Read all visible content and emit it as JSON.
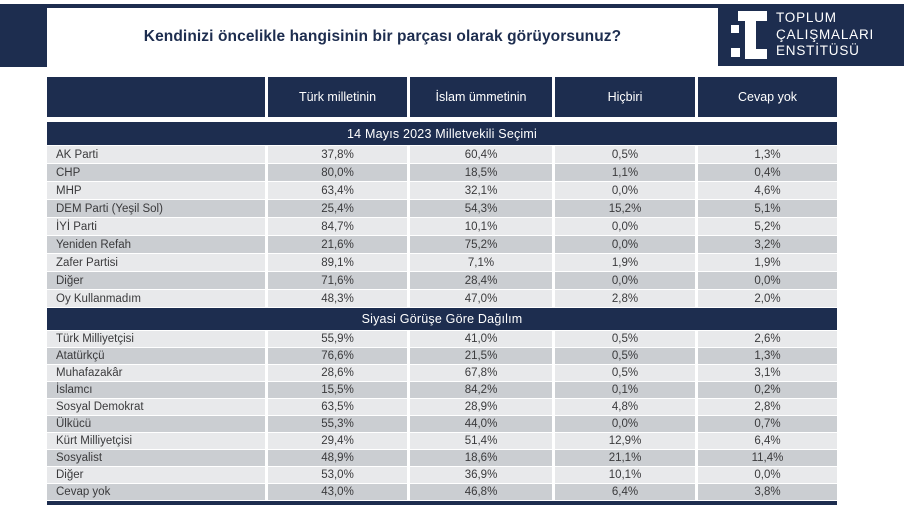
{
  "page": {
    "title": "Kendinizi öncelikle hangisinin bir parçası olarak görüyorsunuz?"
  },
  "logo": {
    "lines": [
      "TOPLUM",
      "ÇALIŞMALARI",
      "ENSTİTÜSÜ"
    ]
  },
  "colors": {
    "navy": "#1d2d4f",
    "row_light": "#e8e9eb",
    "row_dark": "#cbced2",
    "text_dark": "#3a3a3c"
  },
  "chart_data": {
    "type": "table",
    "title": "Kendinizi öncelikle hangisinin bir parçası olarak görüyorsunuz?",
    "columns": [
      "Türk milletinin",
      "İslam ümmetinin",
      "Hiçbiri",
      "Cevap yok"
    ],
    "sections": [
      {
        "title": "14 Mayıs 2023 Milletvekili Seçimi",
        "rows": [
          {
            "label": "AK Parti",
            "values": [
              "37,8%",
              "60,4%",
              "0,5%",
              "1,3%"
            ]
          },
          {
            "label": "CHP",
            "values": [
              "80,0%",
              "18,5%",
              "1,1%",
              "0,4%"
            ]
          },
          {
            "label": "MHP",
            "values": [
              "63,4%",
              "32,1%",
              "0,0%",
              "4,6%"
            ]
          },
          {
            "label": "DEM Parti (Yeşil Sol)",
            "values": [
              "25,4%",
              "54,3%",
              "15,2%",
              "5,1%"
            ]
          },
          {
            "label": "İYİ Parti",
            "values": [
              "84,7%",
              "10,1%",
              "0,0%",
              "5,2%"
            ]
          },
          {
            "label": "Yeniden Refah",
            "values": [
              "21,6%",
              "75,2%",
              "0,0%",
              "3,2%"
            ]
          },
          {
            "label": "Zafer Partisi",
            "values": [
              "89,1%",
              "7,1%",
              "1,9%",
              "1,9%"
            ]
          },
          {
            "label": "Diğer",
            "values": [
              "71,6%",
              "28,4%",
              "0,0%",
              "0,0%"
            ]
          },
          {
            "label": "Oy Kullanmadım",
            "values": [
              "48,3%",
              "47,0%",
              "2,8%",
              "2,0%"
            ]
          }
        ]
      },
      {
        "title": "Siyasi Görüşe Göre Dağılım",
        "rows": [
          {
            "label": "Türk Milliyetçisi",
            "values": [
              "55,9%",
              "41,0%",
              "0,5%",
              "2,6%"
            ]
          },
          {
            "label": "Atatürkçü",
            "values": [
              "76,6%",
              "21,5%",
              "0,5%",
              "1,3%"
            ]
          },
          {
            "label": "Muhafazakâr",
            "values": [
              "28,6%",
              "67,8%",
              "0,5%",
              "3,1%"
            ]
          },
          {
            "label": "İslamcı",
            "values": [
              "15,5%",
              "84,2%",
              "0,1%",
              "0,2%"
            ]
          },
          {
            "label": "Sosyal Demokrat",
            "values": [
              "63,5%",
              "28,9%",
              "4,8%",
              "2,8%"
            ]
          },
          {
            "label": "Ülkücü",
            "values": [
              "55,3%",
              "44,0%",
              "0,0%",
              "0,7%"
            ]
          },
          {
            "label": "Kürt Milliyetçisi",
            "values": [
              "29,4%",
              "51,4%",
              "12,9%",
              "6,4%"
            ]
          },
          {
            "label": "Sosyalist",
            "values": [
              "48,9%",
              "18,6%",
              "21,1%",
              "11,4%"
            ]
          },
          {
            "label": "Diğer",
            "values": [
              "53,0%",
              "36,9%",
              "10,1%",
              "0,0%"
            ]
          },
          {
            "label": "Cevap yok",
            "values": [
              "43,0%",
              "46,8%",
              "6,4%",
              "3,8%"
            ]
          }
        ]
      }
    ]
  }
}
